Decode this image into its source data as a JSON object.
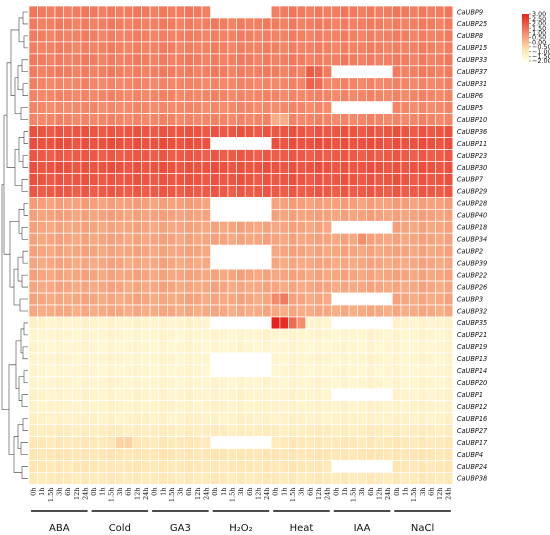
{
  "chart_data": {
    "type": "heatmap",
    "title": "",
    "xlabel": "",
    "ylabel": "",
    "rows": [
      "CaUBP9",
      "CaUBP25",
      "CaUBP8",
      "CaUBP15",
      "CaUBP33",
      "CaUBP37",
      "CaUBP31",
      "CaUBP6",
      "CaUBP5",
      "CaUBP10",
      "CaUBP36",
      "CaUBP11",
      "CaUBP23",
      "CaUBP30",
      "CaUBP7",
      "CaUBP29",
      "CaUBP28",
      "CaUBP40",
      "CaUBP18",
      "CaUBP34",
      "CaUBP2",
      "CaUBP39",
      "CaUBP22",
      "CaUBP26",
      "CaUBP3",
      "CaUBP32",
      "CaUBP35",
      "CaUBP21",
      "CaUBP19",
      "CaUBP13",
      "CaUBP14",
      "CaUBP20",
      "CaUBP1",
      "CaUBP12",
      "CaUBP16",
      "CaUBP27",
      "CaUBP17",
      "CaUBP4",
      "CaUBP24",
      "CaUBP38"
    ],
    "time_points": [
      "0h",
      "1h",
      "1.5h",
      "3h",
      "6h",
      "12h",
      "24h"
    ],
    "treatments": [
      "ABA",
      "Cold",
      "GA3",
      "H₂O₂",
      "Heat",
      "IAA",
      "NaCl"
    ],
    "colorbar": {
      "ticks": [
        "3.00",
        "2.50",
        "2.00",
        "1.50",
        "1.00",
        "0.50",
        "0.00",
        "−0.50",
        "−1.00",
        "−1.50",
        "−2.00"
      ],
      "range": [
        -2,
        3
      ],
      "low_color": "#FFFFE0",
      "mid_color": "#FFE3AE",
      "high_color": "#E8211A"
    },
    "row_base_values": [
      1.25,
      1.2,
      1.15,
      1.15,
      1.2,
      1.2,
      1.05,
      1.05,
      1.0,
      1.05,
      2.0,
      2.1,
      1.9,
      2.05,
      2.0,
      1.9,
      0.55,
      0.5,
      0.45,
      0.45,
      0.45,
      0.4,
      0.45,
      0.4,
      0.4,
      0.35,
      -1.5,
      -1.55,
      -1.6,
      -1.55,
      -1.6,
      -1.55,
      -1.5,
      -1.45,
      -1.4,
      -1.2,
      -1.0,
      -0.9,
      -0.95,
      -1.05
    ],
    "missing": [
      {
        "row": "CaUBP9",
        "treatment": "H₂O₂"
      },
      {
        "row": "CaUBP37",
        "treatment": "IAA"
      },
      {
        "row": "CaUBP5",
        "treatment": "IAA"
      },
      {
        "row": "CaUBP11",
        "treatment": "H₂O₂"
      },
      {
        "row": "CaUBP28",
        "treatment": "H₂O₂"
      },
      {
        "row": "CaUBP40",
        "treatment": "H₂O₂"
      },
      {
        "row": "CaUBP18",
        "treatment": "IAA"
      },
      {
        "row": "CaUBP2",
        "treatment": "H₂O₂"
      },
      {
        "row": "CaUBP39",
        "treatment": "H₂O₂"
      },
      {
        "row": "CaUBP3",
        "treatment": "IAA"
      },
      {
        "row": "CaUBP35",
        "treatment": "H₂O₂"
      },
      {
        "row": "CaUBP35",
        "treatment": "IAA"
      },
      {
        "row": "CaUBP13",
        "treatment": "H₂O₂"
      },
      {
        "row": "CaUBP14",
        "treatment": "H₂O₂"
      },
      {
        "row": "CaUBP1",
        "treatment": "IAA"
      },
      {
        "row": "CaUBP17",
        "treatment": "H₂O₂"
      },
      {
        "row": "CaUBP24",
        "treatment": "IAA"
      }
    ],
    "highlights": [
      {
        "row": "CaUBP35",
        "treatment": "Heat",
        "time": "0h",
        "value": 3.0
      },
      {
        "row": "CaUBP35",
        "treatment": "Heat",
        "time": "1h",
        "value": 2.8
      },
      {
        "row": "CaUBP35",
        "treatment": "Heat",
        "time": "1.5h",
        "value": 1.6
      },
      {
        "row": "CaUBP35",
        "treatment": "Heat",
        "time": "3h",
        "value": 0.9
      },
      {
        "row": "CaUBP37",
        "treatment": "Heat",
        "time": "6h",
        "value": 1.9
      },
      {
        "row": "CaUBP37",
        "treatment": "Heat",
        "time": "12h",
        "value": 1.7
      },
      {
        "row": "CaUBP31",
        "treatment": "Heat",
        "time": "6h",
        "value": 1.8
      },
      {
        "row": "CaUBP31",
        "treatment": "Heat",
        "time": "12h",
        "value": 1.6
      },
      {
        "row": "CaUBP10",
        "treatment": "Heat",
        "time": "0h",
        "value": 0.3
      },
      {
        "row": "CaUBP10",
        "treatment": "Heat",
        "time": "1h",
        "value": 0.3
      },
      {
        "row": "CaUBP3",
        "treatment": "Heat",
        "time": "1h",
        "value": 1.3
      },
      {
        "row": "CaUBP3",
        "treatment": "Heat",
        "time": "0h",
        "value": 1.0
      },
      {
        "row": "CaUBP34",
        "treatment": "IAA",
        "time": "3h",
        "value": 0.9
      },
      {
        "row": "CaUBP17",
        "treatment": "Cold",
        "time": "3h",
        "value": -0.4
      },
      {
        "row": "CaUBP17",
        "treatment": "Cold",
        "time": "6h",
        "value": -0.4
      }
    ]
  }
}
